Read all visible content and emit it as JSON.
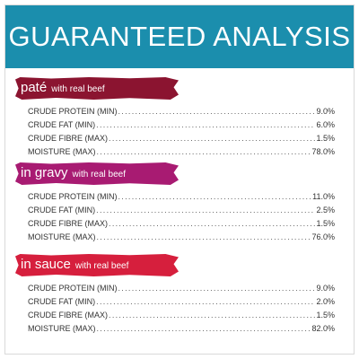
{
  "header": {
    "title": "GUARANTEED ANALYSIS",
    "color": "#1b8ead"
  },
  "sections": [
    {
      "name": "paté",
      "subtitle": "with real beef",
      "color": "#8b1430",
      "rows": [
        {
          "label": "CRUDE PROTEIN (MIN)",
          "value": "9.0%"
        },
        {
          "label": "CRUDE FAT (MIN)",
          "value": "6.0%"
        },
        {
          "label": "CRUDE FIBRE (MAX)",
          "value": "1.5%"
        },
        {
          "label": "MOISTURE (MAX)",
          "value": "78.0%"
        }
      ]
    },
    {
      "name": "in gravy",
      "subtitle": "with real beef",
      "color": "#a81b72",
      "rows": [
        {
          "label": "CRUDE PROTEIN (MIN)",
          "value": "11.0%"
        },
        {
          "label": "CRUDE FAT (MIN)",
          "value": "2.5%"
        },
        {
          "label": "CRUDE FIBRE (MAX)",
          "value": "1.5%"
        },
        {
          "label": "MOISTURE (MAX)",
          "value": "76.0%"
        }
      ]
    },
    {
      "name": "in sauce",
      "subtitle": "with real beef",
      "color": "#d61f3d",
      "rows": [
        {
          "label": "CRUDE PROTEIN (MIN)",
          "value": "9.0%"
        },
        {
          "label": "CRUDE FAT (MIN)",
          "value": "2.0%"
        },
        {
          "label": "CRUDE FIBRE (MAX)",
          "value": "1.5%"
        },
        {
          "label": "MOISTURE (MAX)",
          "value": "82.0%"
        }
      ]
    }
  ]
}
